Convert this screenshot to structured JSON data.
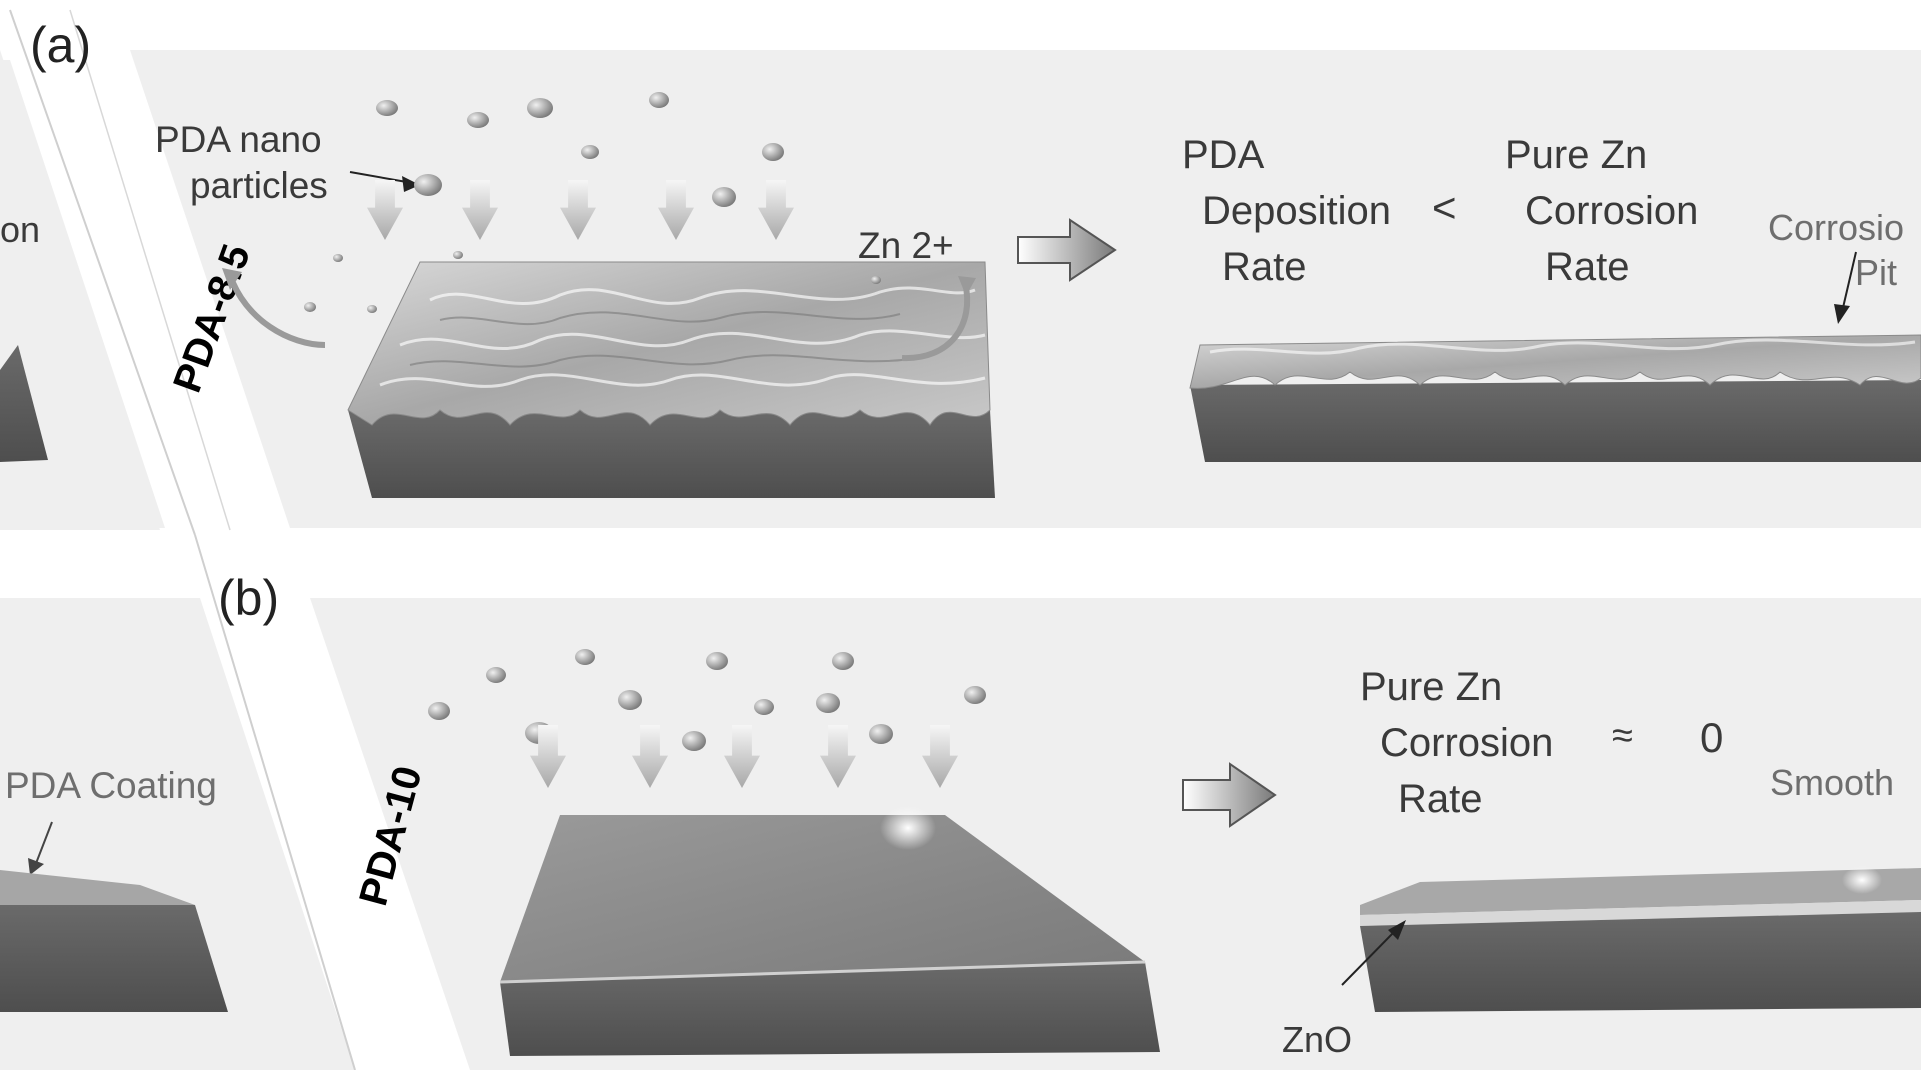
{
  "panel_a": {
    "letter": "(a)",
    "side_label": "PDA-8.5",
    "left_partial_label": "on",
    "pda_particles_label_1": "PDA nano",
    "pda_particles_label_2": "particles",
    "zn_ion_label": "Zn 2+",
    "result_pda_1": "PDA",
    "result_pda_2": "Deposition",
    "result_pda_3": "Rate",
    "comparison": "<",
    "result_zn_1": "Pure Zn",
    "result_zn_2": "Corrosion",
    "result_zn_3": "Rate",
    "corrosion_pit_1": "Corrosio",
    "corrosion_pit_2": "Pit"
  },
  "panel_b": {
    "letter": "(b)",
    "side_label": "PDA-10",
    "left_partial_label": "PDA Coating",
    "result_zn_1": "Pure Zn",
    "result_zn_2": "Corrosion",
    "result_zn_3": "Rate",
    "approx": "≈",
    "zero": "0",
    "smooth_label": "Smooth",
    "zno_label": "ZnO"
  },
  "colors": {
    "panel_bg": "#efefef",
    "substrate_side": "#5f5f5f",
    "substrate_top_flat": "#8a8a8a",
    "rough_surface": "#b8b8b8",
    "particle": "#9a9a9a"
  }
}
